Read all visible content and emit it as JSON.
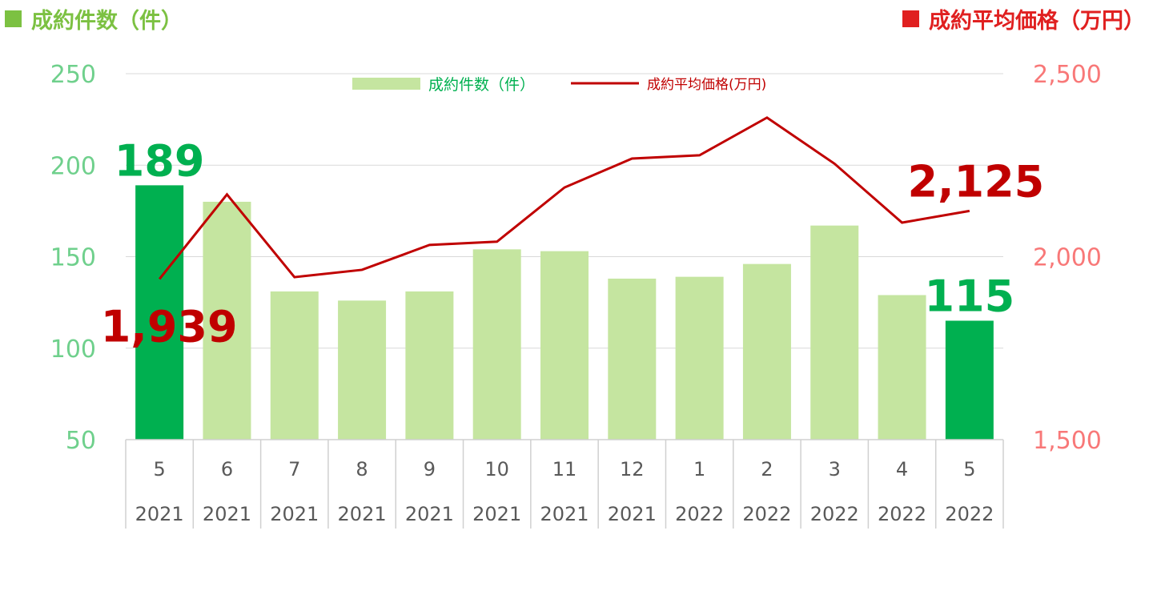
{
  "header": {
    "left_title": "成約件数（件）",
    "right_title": "成約平均価格（万円）",
    "left_color": "#7cc142",
    "right_color": "#e02020"
  },
  "chart_data": {
    "type": "bar",
    "categories": [
      "5",
      "6",
      "7",
      "8",
      "9",
      "10",
      "11",
      "12",
      "1",
      "2",
      "3",
      "4",
      "5"
    ],
    "years": [
      "2021",
      "2021",
      "2021",
      "2021",
      "2021",
      "2021",
      "2021",
      "2021",
      "2022",
      "2022",
      "2022",
      "2022",
      "2022"
    ],
    "series": [
      {
        "name": "成約件数（件）",
        "type": "bar",
        "axis": "left",
        "values": [
          189,
          180,
          131,
          126,
          131,
          154,
          153,
          138,
          139,
          146,
          167,
          129,
          115
        ],
        "color": "#c5e5a0",
        "highlight_color": "#00b050",
        "highlight_indices": [
          0,
          12
        ]
      },
      {
        "name": "成約平均価格(万円)",
        "type": "line",
        "axis": "right",
        "values": [
          1939,
          2170,
          1944,
          1964,
          2032,
          2041,
          2189,
          2268,
          2277,
          2380,
          2254,
          2093,
          2125
        ],
        "color": "#c00000"
      }
    ],
    "y_left": {
      "ticks": [
        50,
        100,
        150,
        200,
        250
      ],
      "ylim": [
        50,
        250
      ],
      "color": "#6fd08c"
    },
    "y_right": {
      "ticks": [
        "1,500",
        "2,000",
        "2,500"
      ],
      "tick_values": [
        1500,
        2000,
        2500
      ],
      "ylim": [
        1500,
        2500
      ],
      "color": "#f87878"
    },
    "grid": true,
    "legend_position": "top-center",
    "annotations": [
      {
        "text": "189",
        "series": 0,
        "index": 0,
        "color": "#00b050"
      },
      {
        "text": "115",
        "series": 0,
        "index": 12,
        "color": "#00b050"
      },
      {
        "text": "1,939",
        "series": 1,
        "index": 0,
        "color": "#c00000"
      },
      {
        "text": "2,125",
        "series": 1,
        "index": 12,
        "color": "#c00000"
      }
    ]
  }
}
